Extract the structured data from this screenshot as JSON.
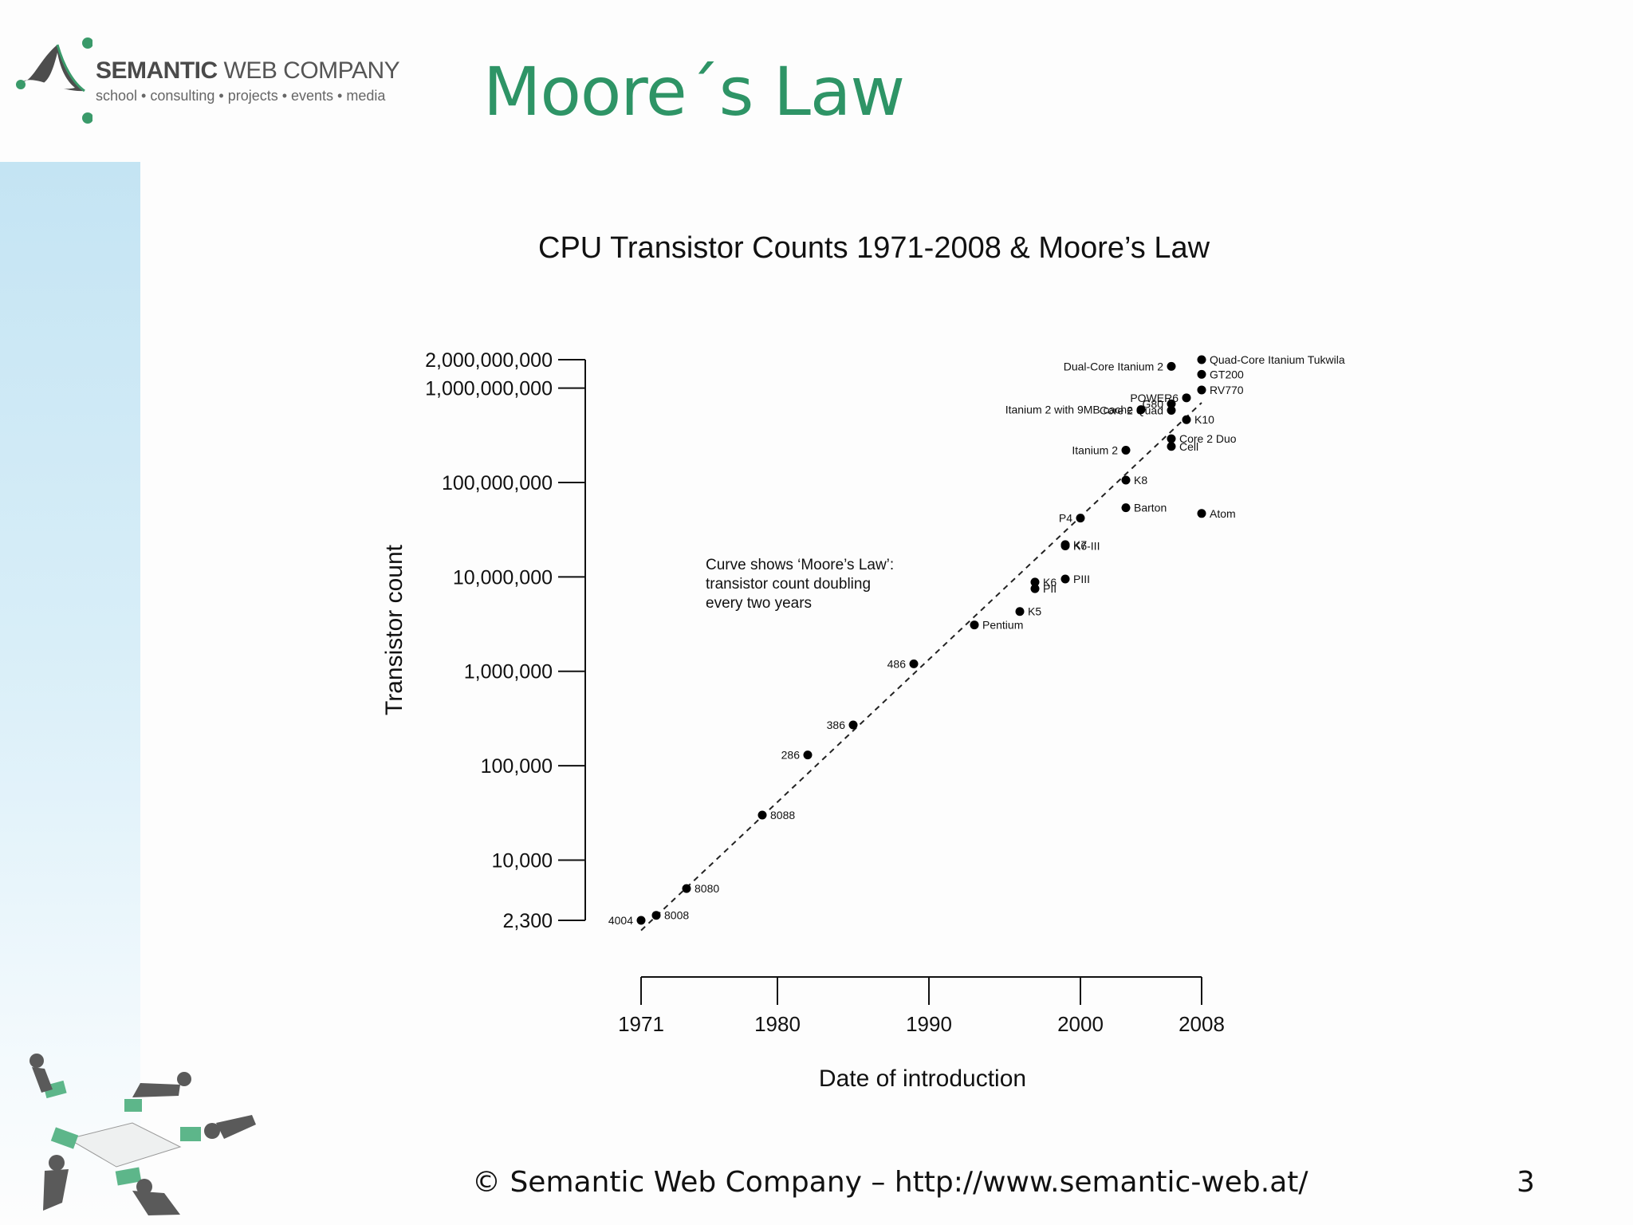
{
  "header": {
    "logo": {
      "brand_bold": "SEMANTIC",
      "brand_rest": "WEB COMPANY",
      "tagline": "school • consulting • projects • events • media"
    },
    "slide_title": "Moore´s Law"
  },
  "footer": {
    "copyright": "© Semantic Web Company – http://www.semantic-web.at/",
    "page_number": "3"
  },
  "colors": {
    "title_green": "#2e9466",
    "logo_green": "#3a9a6a",
    "sidebar_blue": "#c4e4f3"
  },
  "chart_data": {
    "type": "scatter",
    "title": "CPU Transistor Counts 1971-2008 & Moore’s Law",
    "xlabel": "Date of introduction",
    "ylabel": "Transistor count",
    "y_scale": "log",
    "ylim": [
      2300,
      2000000000
    ],
    "xlim": [
      1971,
      2008
    ],
    "x_ticks": [
      {
        "value": 1971,
        "label": "1971"
      },
      {
        "value": 1980,
        "label": "1980"
      },
      {
        "value": 1990,
        "label": "1990"
      },
      {
        "value": 2000,
        "label": "2000"
      },
      {
        "value": 2008,
        "label": "2008"
      }
    ],
    "y_ticks": [
      {
        "value": 2000000000,
        "label": "2,000,000,000"
      },
      {
        "value": 1000000000,
        "label": "1,000,000,000"
      },
      {
        "value": 100000000,
        "label": "100,000,000"
      },
      {
        "value": 10000000,
        "label": "10,000,000"
      },
      {
        "value": 1000000,
        "label": "1,000,000"
      },
      {
        "value": 100000,
        "label": "100,000"
      },
      {
        "value": 10000,
        "label": "10,000"
      },
      {
        "value": 2300,
        "label": "2,300"
      }
    ],
    "annotation": [
      "Curve shows ‘Moore’s Law’:",
      "transistor count doubling",
      "every two years"
    ],
    "trend_line": {
      "style": "dashed",
      "from": [
        1971,
        1800
      ],
      "to": [
        2008,
        700000000
      ]
    },
    "points": [
      {
        "label": "4004",
        "x": 1971.0,
        "y": 2300,
        "label_side": "left"
      },
      {
        "label": "8008",
        "x": 1972.0,
        "y": 2600,
        "label_side": "right"
      },
      {
        "label": "8080",
        "x": 1974.0,
        "y": 5000,
        "label_side": "right"
      },
      {
        "label": "8088",
        "x": 1979.0,
        "y": 30000,
        "label_side": "right"
      },
      {
        "label": "286",
        "x": 1982.0,
        "y": 130000,
        "label_side": "left"
      },
      {
        "label": "386",
        "x": 1985.0,
        "y": 270000,
        "label_side": "left"
      },
      {
        "label": "486",
        "x": 1989.0,
        "y": 1200000,
        "label_side": "left"
      },
      {
        "label": "Pentium",
        "x": 1993.0,
        "y": 3100000,
        "label_side": "right"
      },
      {
        "label": "K5",
        "x": 1996.0,
        "y": 4300000,
        "label_side": "right"
      },
      {
        "label": "K6",
        "x": 1997.0,
        "y": 8800000,
        "label_side": "right"
      },
      {
        "label": "PII",
        "x": 1997.0,
        "y": 7500000,
        "label_side": "right"
      },
      {
        "label": "PIII",
        "x": 1999.0,
        "y": 9500000,
        "label_side": "right"
      },
      {
        "label": "K6-III",
        "x": 1999.0,
        "y": 21300000,
        "label_side": "right"
      },
      {
        "label": "K7",
        "x": 1999.0,
        "y": 22000000,
        "label_side": "right"
      },
      {
        "label": "P4",
        "x": 2000.0,
        "y": 42000000,
        "label_side": "left"
      },
      {
        "label": "Barton",
        "x": 2003.0,
        "y": 54000000,
        "label_side": "right"
      },
      {
        "label": "Atom",
        "x": 2008.0,
        "y": 47000000,
        "label_side": "right"
      },
      {
        "label": "K8",
        "x": 2003.0,
        "y": 105900000,
        "label_side": "right"
      },
      {
        "label": "Itanium 2",
        "x": 2003.0,
        "y": 220000000,
        "label_side": "left"
      },
      {
        "label": "Cell",
        "x": 2006.0,
        "y": 241000000,
        "label_side": "right"
      },
      {
        "label": "Core 2 Duo",
        "x": 2006.0,
        "y": 291000000,
        "label_side": "right"
      },
      {
        "label": "Core 2 Quad",
        "x": 2006.0,
        "y": 582000000,
        "label_side": "left"
      },
      {
        "label": "K10",
        "x": 2007.0,
        "y": 463000000,
        "label_side": "right"
      },
      {
        "label": "Itanium 2 with 9MB cache",
        "x": 2004.0,
        "y": 592000000,
        "label_side": "left"
      },
      {
        "label": "G80",
        "x": 2006.0,
        "y": 681000000,
        "label_side": "left"
      },
      {
        "label": "POWER6",
        "x": 2007.0,
        "y": 789000000,
        "label_side": "left"
      },
      {
        "label": "RV770",
        "x": 2008.0,
        "y": 956000000,
        "label_side": "right"
      },
      {
        "label": "GT200",
        "x": 2008.0,
        "y": 1400000000,
        "label_side": "right"
      },
      {
        "label": "Dual-Core Itanium 2",
        "x": 2006.0,
        "y": 1700000000,
        "label_side": "left"
      },
      {
        "label": "Quad-Core Itanium Tukwila",
        "x": 2008.0,
        "y": 2000000000,
        "label_side": "right"
      }
    ]
  }
}
